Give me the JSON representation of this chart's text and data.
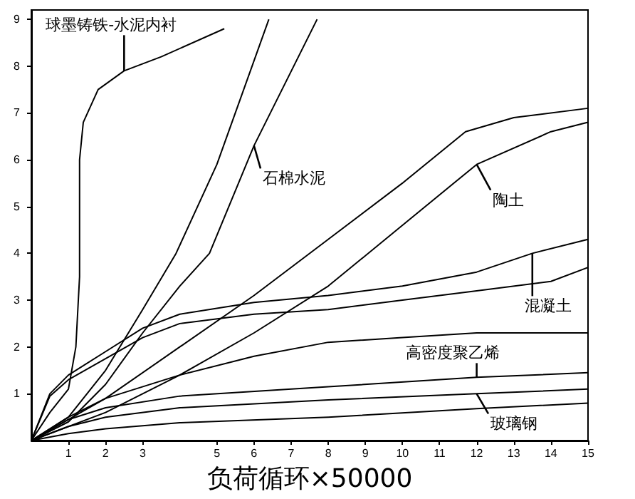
{
  "chart_data": {
    "type": "line",
    "xlabel": "负荷循环×50000",
    "xlim": [
      0,
      15
    ],
    "xticks": [
      1,
      2,
      3,
      5,
      6,
      7,
      8,
      9,
      10,
      11,
      12,
      13,
      14,
      15
    ],
    "ylim": [
      0,
      9.2
    ],
    "yticks": [
      1,
      2,
      3,
      4,
      5,
      6,
      7,
      8,
      9
    ],
    "grid": false,
    "marker": "none",
    "line_style": "solid",
    "series": [
      {
        "color": "#000000",
        "x": [
          0,
          0.5,
          1,
          1.2,
          1.3,
          1.3,
          1.4,
          1.8,
          2.5,
          3.5,
          5.2
        ],
        "values": [
          0,
          0.6,
          1.1,
          2,
          3.5,
          6,
          6.8,
          7.5,
          7.9,
          8.2,
          8.8
        ]
      },
      {
        "color": "#000000",
        "x": [
          0,
          1,
          2,
          3,
          3.9,
          5,
          6.4
        ],
        "values": [
          0,
          0.5,
          1.5,
          2.8,
          4,
          5.9,
          9
        ]
      },
      {
        "color": "#000000",
        "x": [
          0,
          1,
          2,
          3,
          4,
          4.8,
          6,
          7.7
        ],
        "values": [
          0,
          0.4,
          1.2,
          2.3,
          3.3,
          4,
          6.3,
          9
        ]
      },
      {
        "color": "#000000",
        "x": [
          0,
          2,
          4,
          6,
          8,
          10,
          11.7,
          13,
          15
        ],
        "values": [
          0,
          0.9,
          2,
          3.1,
          4.3,
          5.5,
          6.6,
          6.9,
          7.1
        ]
      },
      {
        "color": "#000000",
        "x": [
          0,
          2,
          4,
          6,
          8,
          10,
          12,
          14,
          15
        ],
        "values": [
          0,
          0.6,
          1.4,
          2.3,
          3.3,
          4.6,
          5.9,
          6.6,
          6.8
        ]
      },
      {
        "color": "#000000",
        "x": [
          0,
          0.5,
          1,
          2,
          3,
          4,
          6,
          8,
          10,
          12,
          13.5,
          15
        ],
        "values": [
          0,
          1,
          1.4,
          1.9,
          2.4,
          2.7,
          2.95,
          3.1,
          3.3,
          3.6,
          4,
          4.3
        ]
      },
      {
        "color": "#000000",
        "x": [
          0,
          0.5,
          1,
          2,
          3,
          4,
          6,
          8,
          10,
          12,
          14,
          15
        ],
        "values": [
          0,
          0.95,
          1.3,
          1.75,
          2.2,
          2.5,
          2.7,
          2.8,
          3,
          3.2,
          3.4,
          3.7
        ]
      },
      {
        "color": "#000000",
        "x": [
          0,
          1,
          2,
          4,
          6,
          8,
          10,
          12,
          15
        ],
        "values": [
          0,
          0.5,
          0.9,
          1.4,
          1.8,
          2.1,
          2.2,
          2.3,
          2.3
        ]
      },
      {
        "color": "#000000",
        "x": [
          0,
          1,
          2,
          4,
          8,
          12,
          15
        ],
        "values": [
          0,
          0.45,
          0.7,
          0.95,
          1.15,
          1.35,
          1.45
        ]
      },
      {
        "color": "#000000",
        "x": [
          0,
          1,
          2,
          4,
          8,
          12,
          15
        ],
        "values": [
          0,
          0.3,
          0.5,
          0.7,
          0.87,
          1,
          1.1
        ]
      },
      {
        "color": "#000000",
        "x": [
          0,
          1,
          2,
          4,
          8,
          12,
          15
        ],
        "values": [
          0,
          0.15,
          0.25,
          0.38,
          0.5,
          0.68,
          0.8
        ]
      }
    ],
    "annotations": [
      {
        "text": "球墨铸铁-水泥内衬",
        "x": 2.5,
        "y": 7.9
      },
      {
        "text": "石棉水泥",
        "x": 6,
        "y": 6.3
      },
      {
        "text": "陶土",
        "x": 12,
        "y": 5.9
      },
      {
        "text": "混凝土",
        "x": 13.5,
        "y": 4
      },
      {
        "text": "高密度聚乙烯",
        "x": 12,
        "y": 1.35
      },
      {
        "text": "玻璃钢",
        "x": 12,
        "y": 1
      }
    ]
  }
}
